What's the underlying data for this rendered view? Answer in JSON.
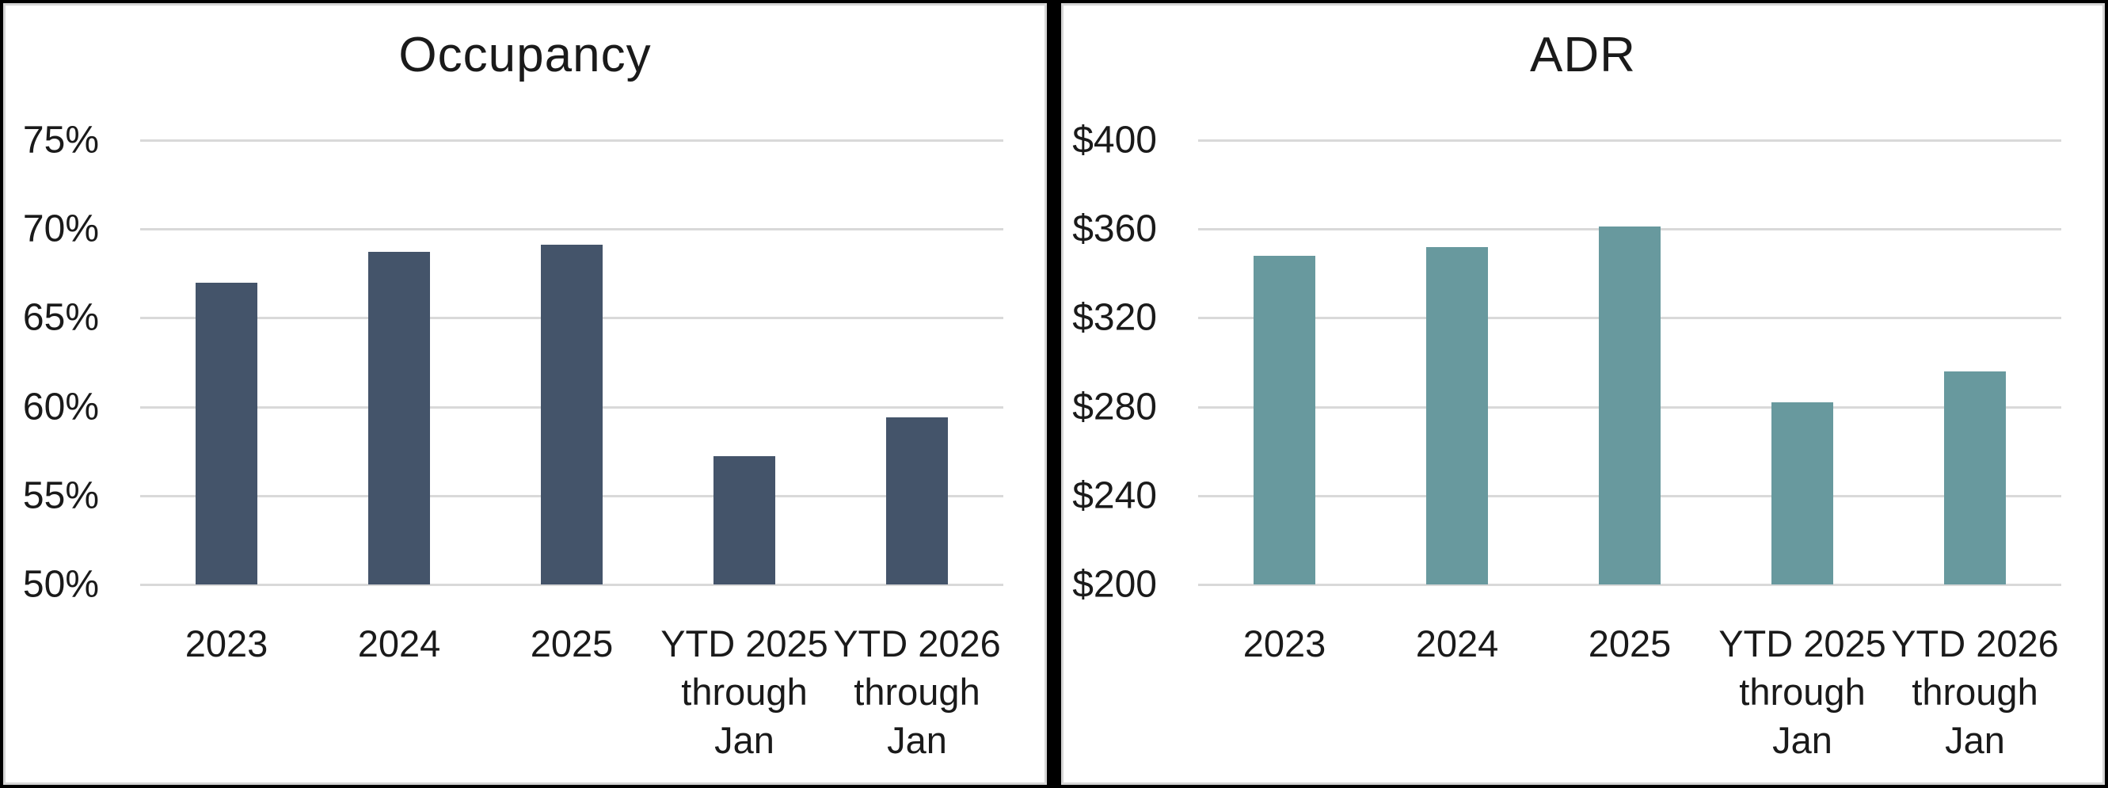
{
  "figure_background": "#000000",
  "panel_border_color": "#d6d6d6",
  "gridline_color": "#d9d9d9",
  "text_color": "#1a1a1a",
  "chart_data": [
    {
      "type": "bar",
      "title": "Occupancy",
      "bar_color": "#44546a",
      "categories": [
        "2023",
        "2024",
        "2025",
        "YTD 2025\nthrough\nJan",
        "YTD 2026\nthrough\nJan"
      ],
      "values": [
        67.0,
        68.7,
        69.1,
        57.2,
        59.4
      ],
      "values_unit": "percent",
      "y_min": 50,
      "y_max": 75,
      "y_tick_step": 5,
      "y_tick_labels_top_to_bottom": [
        "75%",
        "70%",
        "65%",
        "60%",
        "55%",
        "50%"
      ],
      "xlabel": "",
      "ylabel": "",
      "grid": "horizontal",
      "legend": "none"
    },
    {
      "type": "bar",
      "title": "ADR",
      "bar_color": "#68999e",
      "categories": [
        "2023",
        "2024",
        "2025",
        "YTD 2025\nthrough\nJan",
        "YTD 2026\nthrough\nJan"
      ],
      "values": [
        348,
        352,
        361,
        282,
        296
      ],
      "values_unit": "USD",
      "y_min": 200,
      "y_max": 400,
      "y_tick_step": 40,
      "y_tick_labels_top_to_bottom": [
        "$400",
        "$360",
        "$320",
        "$280",
        "$240",
        "$200"
      ],
      "xlabel": "",
      "ylabel": "",
      "grid": "horizontal",
      "legend": "none"
    }
  ]
}
